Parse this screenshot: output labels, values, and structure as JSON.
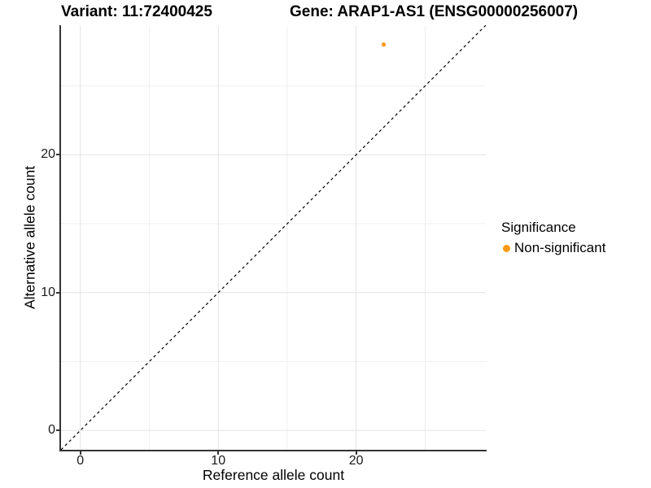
{
  "figure": {
    "titles": {
      "variant": "Variant: 11:72400425",
      "gene": "Gene: ARAP1-AS1 (ENSG00000256007)"
    },
    "axes": {
      "x": {
        "label": "Reference allele count"
      },
      "y": {
        "label": "Alternative allele count"
      }
    },
    "legend": {
      "title": "Significance",
      "items": [
        {
          "label": "Non-significant",
          "color": "#FA9914"
        }
      ]
    },
    "colors": {
      "axis_line": "#343434",
      "tick_label": "#1a1a1a",
      "grid_major": "#e3e3e3",
      "grid_minor": "#efefef",
      "identity_line": "#000000",
      "background": "#ffffff"
    }
  },
  "chart_data": {
    "type": "scatter",
    "title": "Variant: 11:72400425 — Gene: ARAP1-AS1 (ENSG00000256007)",
    "xlabel": "Reference allele count",
    "ylabel": "Alternative allele count",
    "xlim": [
      -1.4,
      29.4
    ],
    "ylim": [
      -1.4,
      29.4
    ],
    "x_ticks": [
      0,
      10,
      20
    ],
    "y_ticks": [
      0,
      10,
      20
    ],
    "x_minor_ticks": [
      5,
      15,
      25
    ],
    "y_minor_ticks": [
      5,
      15,
      25
    ],
    "grid": true,
    "series": [
      {
        "name": "Non-significant",
        "color": "#FA9914",
        "point_radius": 2.6,
        "points": [
          {
            "x": 22,
            "y": 28
          }
        ]
      }
    ],
    "reference_line": {
      "type": "identity y=x",
      "style": "dashed",
      "from": [
        -1.4,
        -1.4
      ],
      "to": [
        29.4,
        29.4
      ]
    },
    "legend": {
      "title": "Significance",
      "position": "right"
    }
  }
}
